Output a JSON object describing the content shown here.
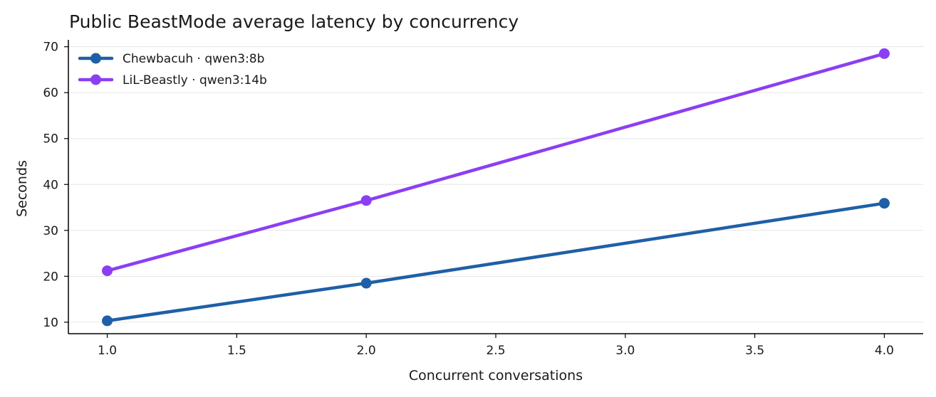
{
  "chart_data": {
    "type": "line",
    "title": "Public BeastMode average latency by concurrency",
    "xlabel": "Concurrent conversations",
    "ylabel": "Seconds",
    "xlim": [
      0.85,
      4.15
    ],
    "ylim": [
      7.5,
      71.5
    ],
    "xticks": [
      1.0,
      1.5,
      2.0,
      2.5,
      3.0,
      3.5,
      4.0
    ],
    "xtick_labels": [
      "1.0",
      "1.5",
      "2.0",
      "2.5",
      "3.0",
      "3.5",
      "4.0"
    ],
    "yticks": [
      10,
      20,
      30,
      40,
      50,
      60,
      70
    ],
    "ytick_labels": [
      "10",
      "20",
      "30",
      "40",
      "50",
      "60",
      "70"
    ],
    "grid": "horizontal",
    "legend_position": "top-left",
    "series": [
      {
        "name": "Chewbacuh · qwen3:8b",
        "color": "#1f5fa6",
        "x": [
          1,
          2,
          4
        ],
        "y": [
          10.3,
          18.5,
          35.9
        ]
      },
      {
        "name": "LiL-Beastly · qwen3:14b",
        "color": "#8b3ff2",
        "x": [
          1,
          2,
          4
        ],
        "y": [
          21.2,
          36.5,
          68.5
        ]
      }
    ]
  }
}
